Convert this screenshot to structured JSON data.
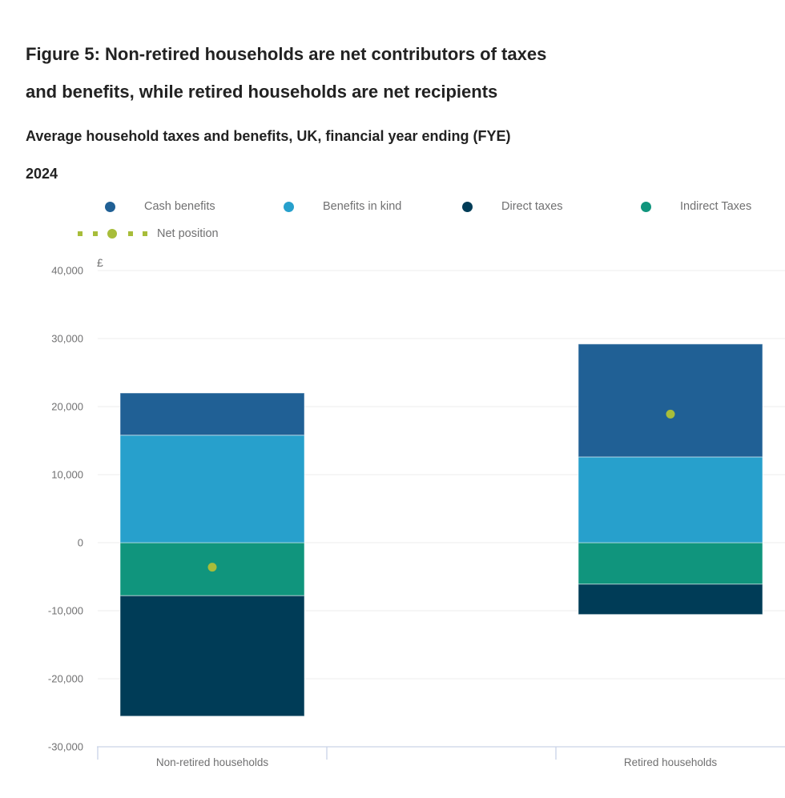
{
  "header": {
    "title_lines": [
      "Figure 5: Non-retired households are net contributors of taxes",
      "and benefits, while retired households are net recipients"
    ],
    "subtitle_lines": [
      "Average household taxes and benefits, UK, financial year ending (FYE)",
      "2024"
    ]
  },
  "legend": [
    {
      "label": "Cash benefits",
      "color": "#206095",
      "marker": "circle"
    },
    {
      "label": "Benefits in kind",
      "color": "#27a0cc",
      "marker": "circle"
    },
    {
      "label": "Direct taxes",
      "color": "#003c57",
      "marker": "circle"
    },
    {
      "label": "Indirect Taxes",
      "color": "#10957d",
      "marker": "circle"
    },
    {
      "label": "Net position",
      "color": "#a8bd3a",
      "marker": "dashed-line-with-dot"
    }
  ],
  "chart_data": {
    "type": "bar",
    "stacked": true,
    "title": "Figure 5: Non-retired households are net contributors of taxes and benefits, while retired households are net recipients",
    "subtitle": "Average household taxes and benefits, UK, financial year ending (FYE) 2024",
    "unit": "£",
    "categories": [
      "Non-retired households",
      "Retired households"
    ],
    "series": [
      {
        "name": "Cash benefits",
        "color": "#206095",
        "values": [
          6200,
          16600
        ]
      },
      {
        "name": "Benefits in kind",
        "color": "#27a0cc",
        "values": [
          15800,
          12600
        ]
      },
      {
        "name": "Direct taxes",
        "color": "#003c57",
        "values": [
          -17700,
          -4450
        ]
      },
      {
        "name": "Indirect Taxes",
        "color": "#10957d",
        "values": [
          -7800,
          -6100
        ]
      }
    ],
    "net_position": {
      "name": "Net position",
      "color": "#a8bd3a",
      "values": [
        -3600,
        18900
      ]
    },
    "ylabel": "£",
    "ylim": [
      -30000,
      40000
    ],
    "yticks": [
      40000,
      30000,
      20000,
      10000,
      0,
      -10000,
      -20000,
      -30000
    ],
    "grid": true,
    "legend_position": "top"
  },
  "colors": {
    "text_dark": "#222222",
    "text_gray": "#707071",
    "gridline": "#ececec",
    "axis": "#c9d3e8"
  }
}
